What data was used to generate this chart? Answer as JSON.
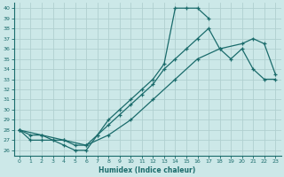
{
  "xlabel": "Humidex (Indice chaleur)",
  "xlim": [
    -0.5,
    23.5
  ],
  "ylim": [
    25.5,
    40.5
  ],
  "yticks": [
    26,
    27,
    28,
    29,
    30,
    31,
    32,
    33,
    34,
    35,
    36,
    37,
    38,
    39,
    40
  ],
  "xticks": [
    0,
    1,
    2,
    3,
    4,
    5,
    6,
    7,
    8,
    9,
    10,
    11,
    12,
    13,
    14,
    15,
    16,
    17,
    18,
    19,
    20,
    21,
    22,
    23
  ],
  "bg_color": "#cce8e8",
  "line_color": "#1a6b6b",
  "grid_color": "#b0d0d0",
  "line1_x": [
    0,
    1,
    2,
    3,
    4,
    5,
    6,
    7,
    8,
    9,
    10,
    11,
    12,
    13,
    14,
    15,
    16,
    17
  ],
  "line1_y": [
    28,
    27,
    27,
    27,
    26.5,
    26,
    26,
    27.5,
    29,
    30,
    31,
    32,
    33,
    34.5,
    40,
    40,
    40,
    39
  ],
  "line2_x": [
    0,
    1,
    2,
    3,
    4,
    5,
    6,
    7,
    8,
    9,
    10,
    11,
    12,
    13,
    14,
    15,
    16,
    17,
    18,
    19,
    20,
    21,
    22,
    23
  ],
  "line2_y": [
    28,
    27.5,
    27.5,
    27,
    27,
    26.5,
    26.5,
    27.5,
    28.5,
    29.5,
    30.5,
    31.5,
    32.5,
    34,
    35,
    36,
    37,
    38,
    36,
    35,
    36,
    34,
    33,
    33
  ],
  "line3_x": [
    0,
    2,
    4,
    6,
    8,
    10,
    12,
    14,
    16,
    18,
    20,
    21,
    22,
    23
  ],
  "line3_y": [
    28,
    27.5,
    27,
    26.5,
    27.5,
    29,
    31,
    33,
    35,
    36,
    36.5,
    37,
    36.5,
    33.5
  ]
}
